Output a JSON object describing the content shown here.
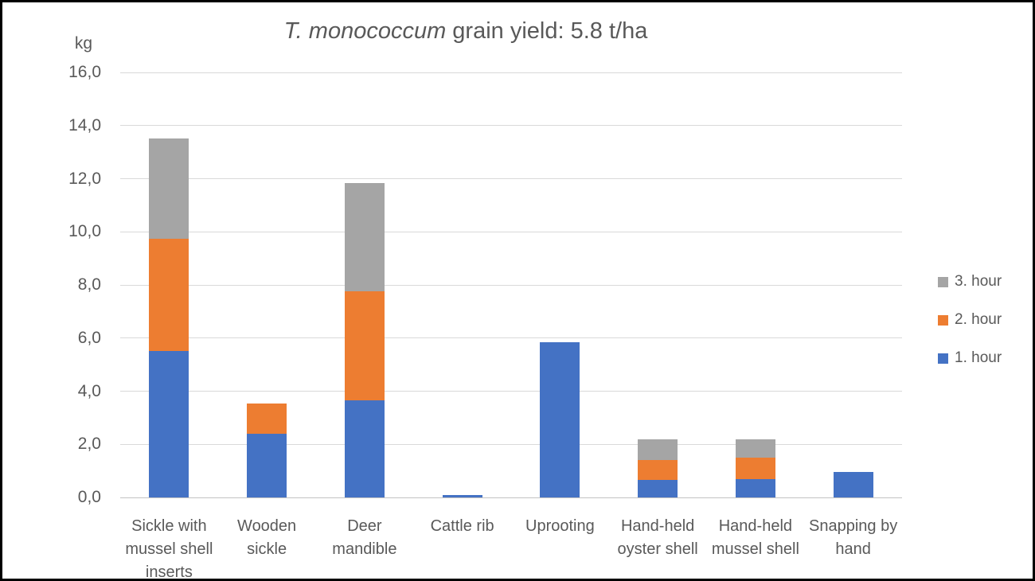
{
  "window": {
    "background": "#ffffff",
    "border_color": "#000000"
  },
  "title": {
    "italic_part": "T. monococcum",
    "regular_part": " grain yield: 5.8 t/ha",
    "color": "#595959"
  },
  "y_axis": {
    "unit_label": "kg",
    "tick_labels": [
      "0,0",
      "2,0",
      "4,0",
      "6,0",
      "8,0",
      "10,0",
      "12,0",
      "14,0",
      "16,0"
    ],
    "min": 0,
    "max": 16,
    "step": 2
  },
  "x_axis": {
    "category_label_lines": [
      [
        "Sickle with",
        "mussel shell",
        "inserts"
      ],
      [
        "Wooden",
        "sickle"
      ],
      [
        "Deer",
        "mandible"
      ],
      [
        "Cattle rib"
      ],
      [
        "Uprooting"
      ],
      [
        "Hand-held",
        "oyster shell"
      ],
      [
        "Hand-held",
        "mussel shell"
      ],
      [
        "Snapping by",
        "hand"
      ]
    ]
  },
  "legend": {
    "items": [
      {
        "label": "3. hour",
        "color": "#A5A5A5"
      },
      {
        "label": "2. hour",
        "color": "#ED7D31"
      },
      {
        "label": "1. hour",
        "color": "#4472C4"
      }
    ]
  },
  "chart_data": {
    "type": "bar",
    "stacked": true,
    "title": "T. monococcum grain yield: 5.8 t/ha",
    "ylabel": "kg",
    "ylim": [
      0,
      16
    ],
    "ytick_step": 2,
    "grid": true,
    "legend_position": "right",
    "decimal_separator": ",",
    "categories": [
      "Sickle with mussel shell inserts",
      "Wooden sickle",
      "Deer mandible",
      "Cattle rib",
      "Uprooting",
      "Hand-held oyster shell",
      "Hand-held mussel shell",
      "Snapping by hand"
    ],
    "series": [
      {
        "name": "1. hour",
        "color": "#4472C4",
        "values": [
          5.5,
          2.4,
          3.65,
          0.1,
          5.85,
          0.65,
          0.7,
          0.95
        ]
      },
      {
        "name": "2. hour",
        "color": "#ED7D31",
        "values": [
          4.25,
          1.15,
          4.1,
          0,
          0,
          0.75,
          0.8,
          0
        ]
      },
      {
        "name": "3. hour",
        "color": "#A5A5A5",
        "values": [
          3.75,
          0,
          4.1,
          0,
          0,
          0.8,
          0.7,
          0
        ]
      }
    ]
  },
  "colors": {
    "gridline": "#D9D9D9",
    "axis_line": "#C3C3C3",
    "text": "#595959"
  }
}
